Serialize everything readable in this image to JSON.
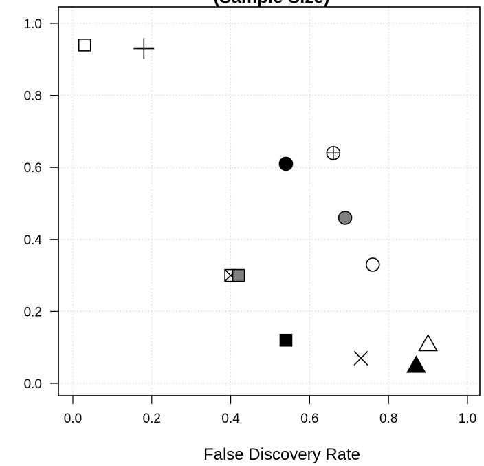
{
  "chart_data": {
    "type": "scatter",
    "title": "(Sample Size)",
    "xlabel": "False Discovery Rate",
    "ylabel": "",
    "xlim": [
      0.0,
      1.0
    ],
    "ylim": [
      0.0,
      1.0
    ],
    "x_ticks": [
      "0.0",
      "0.2",
      "0.4",
      "0.6",
      "0.8",
      "1.0"
    ],
    "y_ticks": [
      "0.0",
      "0.2",
      "0.4",
      "0.6",
      "0.8",
      "1.0"
    ],
    "grid": true,
    "points": [
      {
        "x": 0.03,
        "y": 0.94,
        "marker": "open-square"
      },
      {
        "x": 0.18,
        "y": 0.93,
        "marker": "plus"
      },
      {
        "x": 0.54,
        "y": 0.61,
        "marker": "filled-circle-black"
      },
      {
        "x": 0.66,
        "y": 0.64,
        "marker": "circle-plus"
      },
      {
        "x": 0.69,
        "y": 0.46,
        "marker": "filled-circle-gray"
      },
      {
        "x": 0.76,
        "y": 0.33,
        "marker": "open-circle"
      },
      {
        "x": 0.4,
        "y": 0.3,
        "marker": "square-cross"
      },
      {
        "x": 0.42,
        "y": 0.3,
        "marker": "filled-square-gray"
      },
      {
        "x": 0.54,
        "y": 0.12,
        "marker": "filled-square-black"
      },
      {
        "x": 0.73,
        "y": 0.07,
        "marker": "cross"
      },
      {
        "x": 0.9,
        "y": 0.11,
        "marker": "open-triangle"
      },
      {
        "x": 0.87,
        "y": 0.05,
        "marker": "filled-triangle-black"
      }
    ]
  }
}
